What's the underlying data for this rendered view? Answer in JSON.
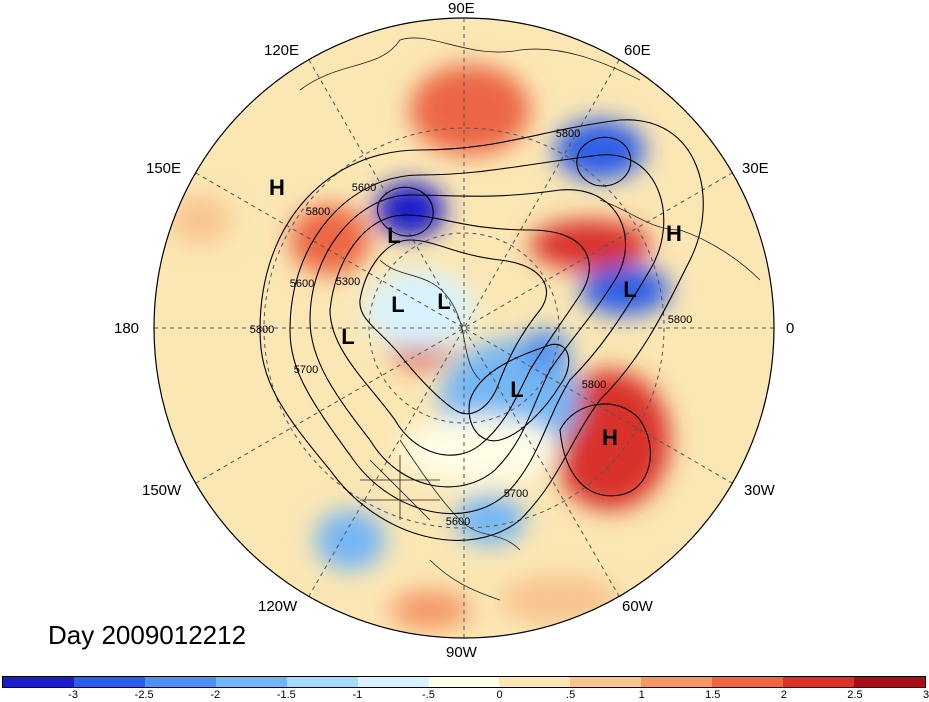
{
  "title": "Day 2009012212",
  "longitude_labels": {
    "e90": "90E",
    "e120": "120E",
    "e60": "60E",
    "e150": "150E",
    "e30": "30E",
    "w180": "180",
    "zero": "0",
    "w150": "150W",
    "w30": "30W",
    "w120": "120W",
    "w60": "60W",
    "w90": "90W"
  },
  "pressure_centers": [
    {
      "label": "H",
      "id": "high-1"
    },
    {
      "label": "H",
      "id": "high-2"
    },
    {
      "label": "H",
      "id": "high-3"
    },
    {
      "label": "L",
      "id": "low-1"
    },
    {
      "label": "L",
      "id": "low-2"
    },
    {
      "label": "L",
      "id": "low-3"
    },
    {
      "label": "L",
      "id": "low-4"
    },
    {
      "label": "L",
      "id": "low-5"
    },
    {
      "label": "L",
      "id": "low-6"
    }
  ],
  "contour_labels": {
    "c1": "5800",
    "c2": "5600",
    "c3": "5800",
    "c4": "5300",
    "c5": "5600",
    "c6": "5800",
    "c7": "5700",
    "c8": "5800",
    "c9": "5800",
    "c10": "5700",
    "c11": "5600"
  },
  "colorbar": {
    "colors": [
      "#1c1cc8",
      "#2d5fe6",
      "#4f8fef",
      "#74b6f5",
      "#a4dcfa",
      "#d8f3fd",
      "#fefde6",
      "#fbe7b4",
      "#f8c48f",
      "#f49868",
      "#ec6645",
      "#d8322a",
      "#a80e1a"
    ],
    "ticks": [
      "-3",
      "-2.5",
      "-2",
      "-1.5",
      "-1",
      "-.5",
      "0",
      ".5",
      "1",
      "1.5",
      "2",
      "2.5",
      "3"
    ]
  }
}
